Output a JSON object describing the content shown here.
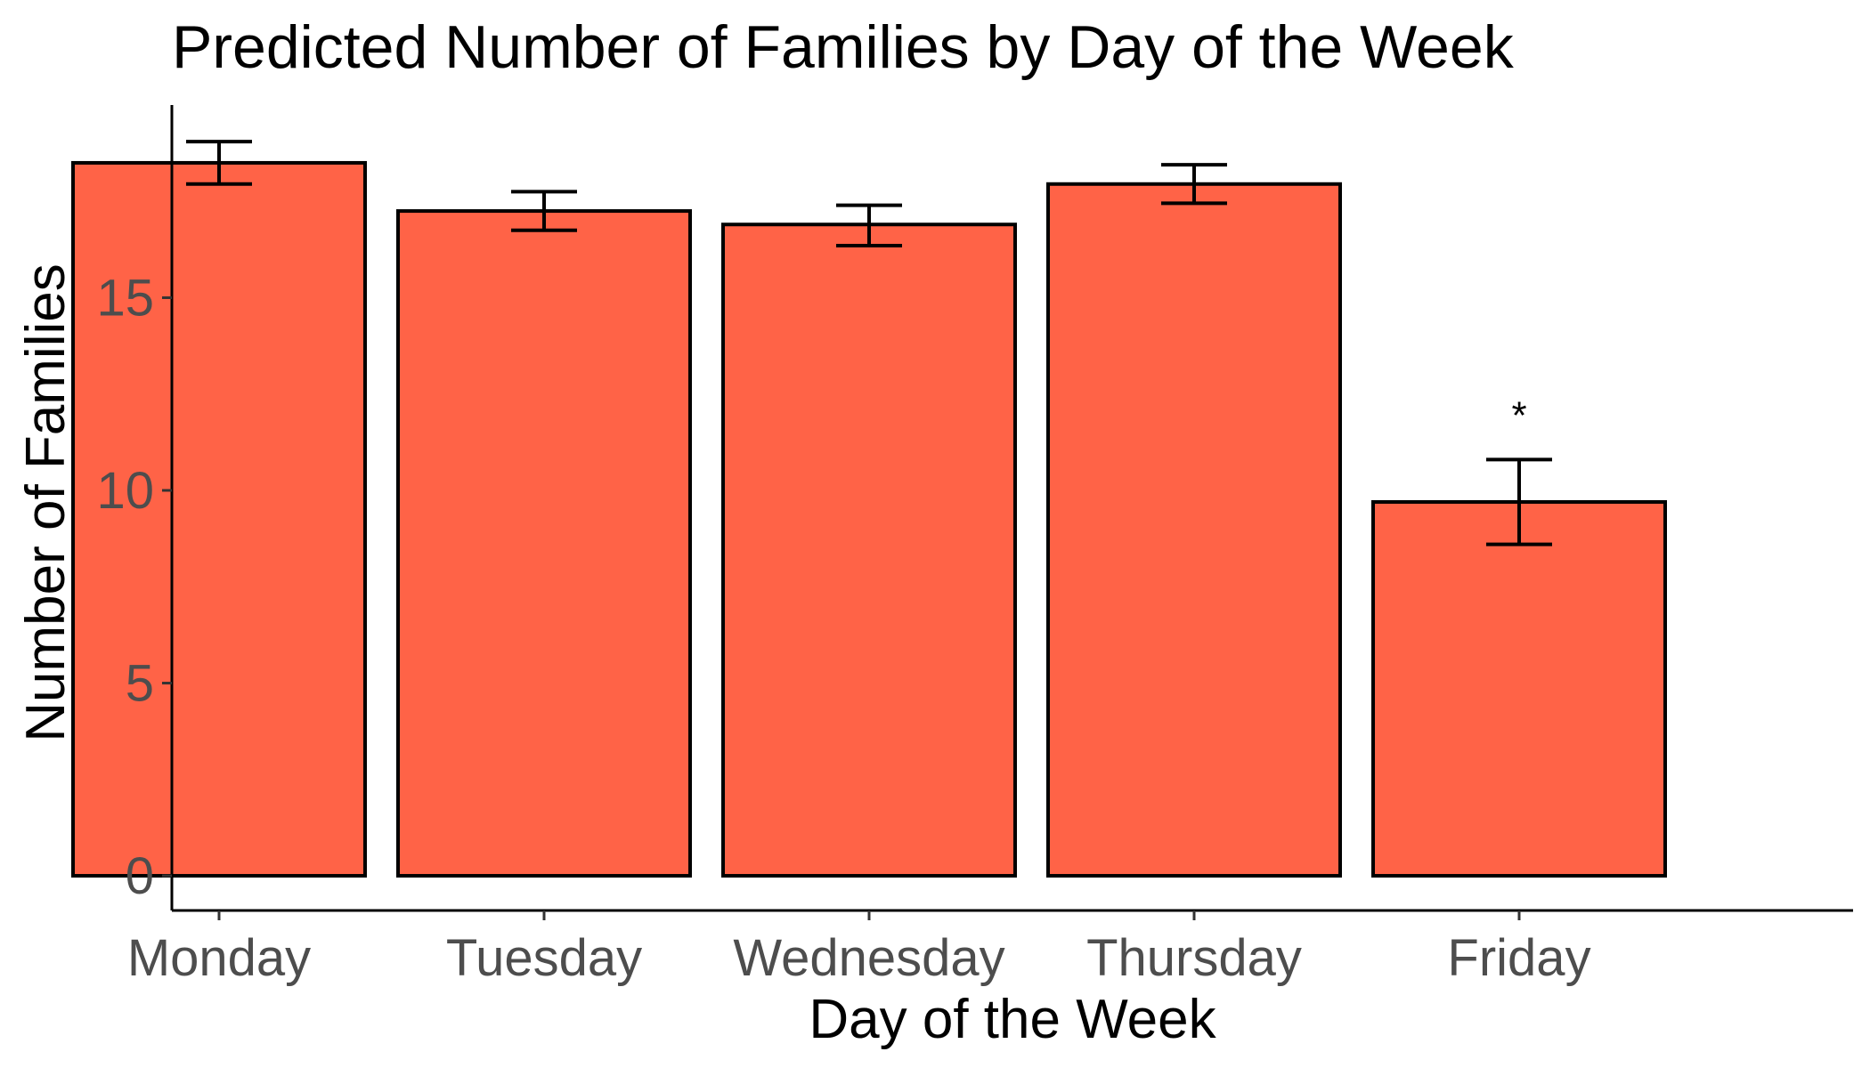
{
  "chart_data": {
    "type": "bar",
    "title": "Predicted Number of Families by Day of the Week",
    "xlabel": "Day of the Week",
    "ylabel": "Number of Families",
    "categories": [
      "Monday",
      "Tuesday",
      "Wednesday",
      "Thursday",
      "Friday"
    ],
    "values": [
      18.5,
      17.25,
      16.9,
      17.95,
      9.7
    ],
    "error_low": [
      17.95,
      16.75,
      16.35,
      17.45,
      8.6
    ],
    "error_high": [
      19.05,
      17.75,
      17.4,
      18.45,
      10.8
    ],
    "annotations": [
      "",
      "",
      "",
      "",
      "*"
    ],
    "ylim": [
      -0.9,
      20
    ],
    "yticks": [
      0,
      5,
      10,
      15
    ],
    "grid": false,
    "legend": "none",
    "bar_color": "#FF6347",
    "edge_color": "#000000"
  }
}
